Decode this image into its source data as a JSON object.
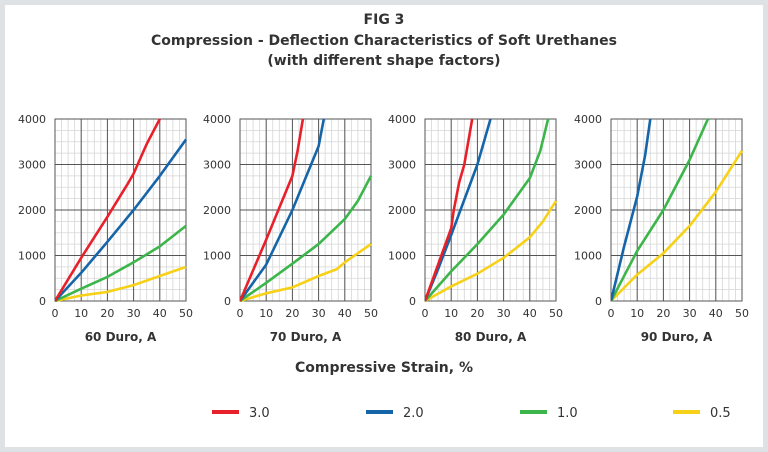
{
  "header": {
    "fig_label": "FIG 3",
    "title": "Compression - Deflection Characteristics of Soft Urethanes",
    "subtitle": "(with different shape factors)"
  },
  "xlabel": "Compressive Strain, %",
  "legend": [
    {
      "name": "3.0",
      "color": "#e8202a"
    },
    {
      "name": "2.0",
      "color": "#1565a8"
    },
    {
      "name": "1.0",
      "color": "#3cb54a"
    },
    {
      "name": "0.5",
      "color": "#f7d117"
    }
  ],
  "chart_data": [
    {
      "type": "line",
      "title": "60 Duro, A",
      "xlim": [
        0,
        50
      ],
      "ylim": [
        0,
        4000
      ],
      "xticks": [
        0,
        10,
        20,
        30,
        40,
        50
      ],
      "yticks": [
        0,
        1000,
        2000,
        3000,
        4000
      ],
      "grid": true,
      "series": [
        {
          "name": "3.0",
          "points": [
            [
              0,
              0
            ],
            [
              10,
              950
            ],
            [
              20,
              1850
            ],
            [
              28,
              2600
            ],
            [
              30,
              2800
            ],
            [
              35,
              3450
            ],
            [
              40,
              4000
            ]
          ]
        },
        {
          "name": "2.0",
          "points": [
            [
              0,
              0
            ],
            [
              10,
              620
            ],
            [
              20,
              1300
            ],
            [
              30,
              2000
            ],
            [
              40,
              2750
            ],
            [
              50,
              3550
            ]
          ]
        },
        {
          "name": "1.0",
          "points": [
            [
              0,
              0
            ],
            [
              10,
              270
            ],
            [
              20,
              530
            ],
            [
              30,
              850
            ],
            [
              40,
              1200
            ],
            [
              50,
              1650
            ]
          ]
        },
        {
          "name": "0.5",
          "points": [
            [
              0,
              0
            ],
            [
              10,
              120
            ],
            [
              20,
              200
            ],
            [
              30,
              350
            ],
            [
              40,
              550
            ],
            [
              50,
              750
            ]
          ]
        }
      ]
    },
    {
      "type": "line",
      "title": "70 Duro, A",
      "xlim": [
        0,
        50
      ],
      "ylim": [
        0,
        4000
      ],
      "xticks": [
        0,
        10,
        20,
        30,
        40,
        50
      ],
      "yticks": [
        0,
        1000,
        2000,
        3000,
        4000
      ],
      "grid": true,
      "series": [
        {
          "name": "3.0",
          "points": [
            [
              0,
              0
            ],
            [
              10,
              1350
            ],
            [
              20,
              2750
            ],
            [
              22,
              3300
            ],
            [
              24,
              4000
            ]
          ]
        },
        {
          "name": "2.0",
          "points": [
            [
              0,
              0
            ],
            [
              10,
              800
            ],
            [
              20,
              2000
            ],
            [
              30,
              3400
            ],
            [
              32,
              4000
            ]
          ]
        },
        {
          "name": "1.0",
          "points": [
            [
              0,
              0
            ],
            [
              10,
              400
            ],
            [
              20,
              820
            ],
            [
              30,
              1250
            ],
            [
              40,
              1800
            ],
            [
              45,
              2200
            ],
            [
              50,
              2750
            ]
          ]
        },
        {
          "name": "0.5",
          "points": [
            [
              0,
              0
            ],
            [
              10,
              170
            ],
            [
              20,
              300
            ],
            [
              30,
              550
            ],
            [
              37,
              700
            ],
            [
              40,
              850
            ],
            [
              50,
              1250
            ]
          ]
        }
      ]
    },
    {
      "type": "line",
      "title": "80 Duro, A",
      "xlim": [
        0,
        50
      ],
      "ylim": [
        0,
        4000
      ],
      "xticks": [
        0,
        10,
        20,
        30,
        40,
        50
      ],
      "yticks": [
        0,
        1000,
        2000,
        3000,
        4000
      ],
      "grid": true,
      "series": [
        {
          "name": "3.0",
          "points": [
            [
              0,
              0
            ],
            [
              5,
              800
            ],
            [
              10,
              1600
            ],
            [
              11,
              2000
            ],
            [
              13,
              2600
            ],
            [
              15,
              3000
            ],
            [
              18,
              4000
            ]
          ]
        },
        {
          "name": "2.0",
          "points": [
            [
              0,
              0
            ],
            [
              5,
              700
            ],
            [
              10,
              1450
            ],
            [
              20,
              3000
            ],
            [
              25,
              4000
            ]
          ]
        },
        {
          "name": "1.0",
          "points": [
            [
              0,
              0
            ],
            [
              10,
              650
            ],
            [
              20,
              1250
            ],
            [
              30,
              1900
            ],
            [
              40,
              2700
            ],
            [
              44,
              3300
            ],
            [
              47,
              4000
            ]
          ]
        },
        {
          "name": "0.5",
          "points": [
            [
              0,
              0
            ],
            [
              10,
              320
            ],
            [
              20,
              600
            ],
            [
              30,
              950
            ],
            [
              40,
              1400
            ],
            [
              45,
              1750
            ],
            [
              50,
              2200
            ]
          ]
        }
      ]
    },
    {
      "type": "line",
      "title": "90 Duro, A",
      "xlim": [
        0,
        50
      ],
      "ylim": [
        0,
        4000
      ],
      "xticks": [
        0,
        10,
        20,
        30,
        40,
        50
      ],
      "yticks": [
        0,
        1000,
        2000,
        3000,
        4000
      ],
      "grid": true,
      "series": [
        {
          "name": "2.0",
          "points": [
            [
              0,
              0
            ],
            [
              5,
              1200
            ],
            [
              10,
              2300
            ],
            [
              13,
              3200
            ],
            [
              15,
              4000
            ]
          ]
        },
        {
          "name": "1.0",
          "points": [
            [
              0,
              0
            ],
            [
              10,
              1100
            ],
            [
              20,
              2000
            ],
            [
              30,
              3100
            ],
            [
              37,
              4000
            ]
          ]
        },
        {
          "name": "0.5",
          "points": [
            [
              0,
              0
            ],
            [
              10,
              580
            ],
            [
              20,
              1050
            ],
            [
              30,
              1650
            ],
            [
              40,
              2400
            ],
            [
              50,
              3300
            ]
          ]
        }
      ]
    }
  ]
}
